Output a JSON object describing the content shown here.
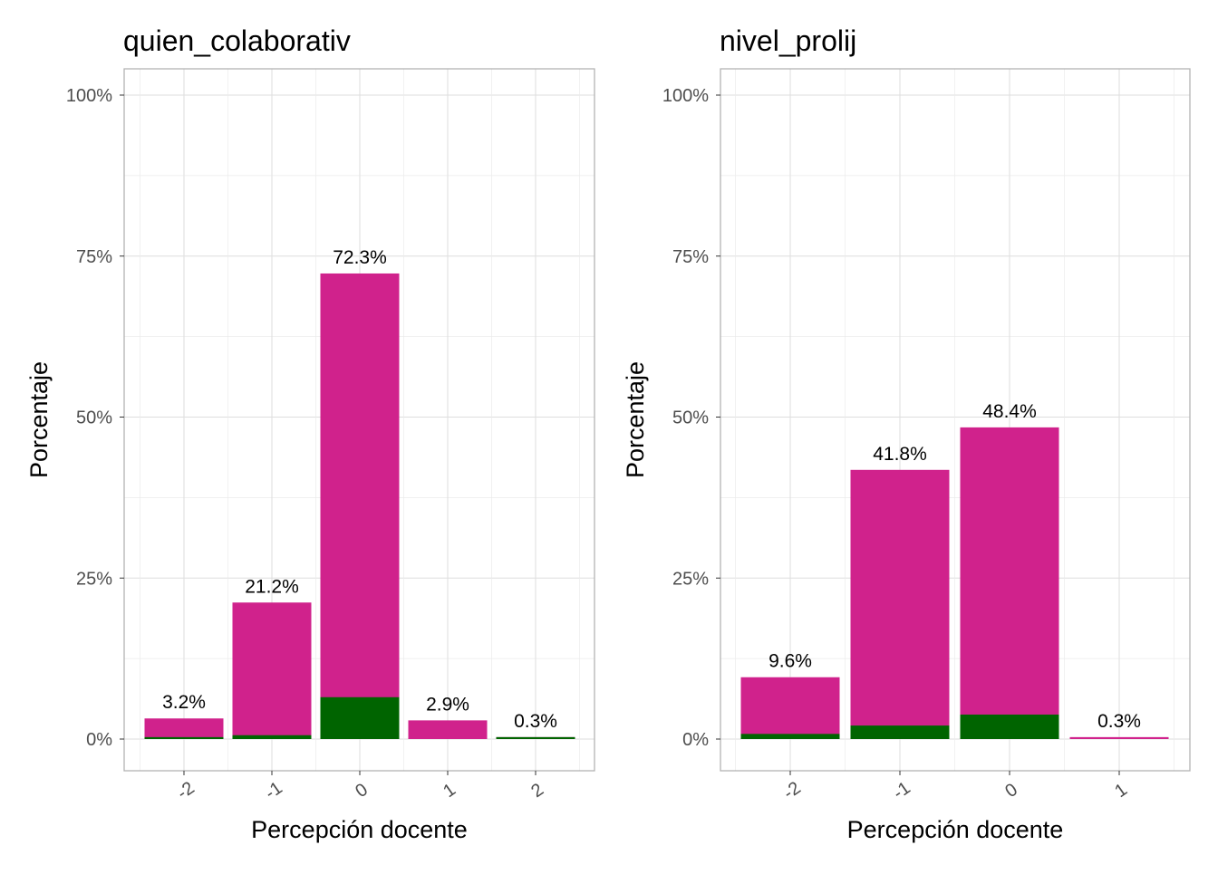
{
  "colors": {
    "total": "#D0228C",
    "subset": "#006400"
  },
  "chart_data": [
    {
      "type": "bar",
      "title": "quien_colaborativ",
      "xlabel": "Percepción docente",
      "ylabel": "Porcentaje",
      "categories": [
        "-2",
        "-1",
        "0",
        "1",
        "2"
      ],
      "series": [
        {
          "values": [
            3.2,
            21.2,
            72.3,
            2.9,
            0.3
          ],
          "color": "#D0228C"
        },
        {
          "values": [
            0.3,
            0.6,
            6.5,
            0,
            0.3
          ],
          "color": "#006400"
        }
      ],
      "data_labels": [
        "3.2%",
        "21.2%",
        "72.3%",
        "2.9%",
        "0.3%"
      ],
      "yticks": [
        "0%",
        "25%",
        "50%",
        "75%",
        "100%"
      ],
      "ylim": [
        0,
        100
      ],
      "grid": true
    },
    {
      "type": "bar",
      "title": "nivel_prolij",
      "xlabel": "Percepción docente",
      "ylabel": "Porcentaje",
      "categories": [
        "-2",
        "-1",
        "0",
        "1"
      ],
      "series": [
        {
          "values": [
            9.6,
            41.8,
            48.4,
            0.3
          ],
          "color": "#D0228C"
        },
        {
          "values": [
            0.8,
            2.1,
            3.8,
            0
          ],
          "color": "#006400"
        }
      ],
      "data_labels": [
        "9.6%",
        "41.8%",
        "48.4%",
        "0.3%"
      ],
      "yticks": [
        "0%",
        "25%",
        "50%",
        "75%",
        "100%"
      ],
      "ylim": [
        0,
        100
      ],
      "grid": true
    }
  ]
}
